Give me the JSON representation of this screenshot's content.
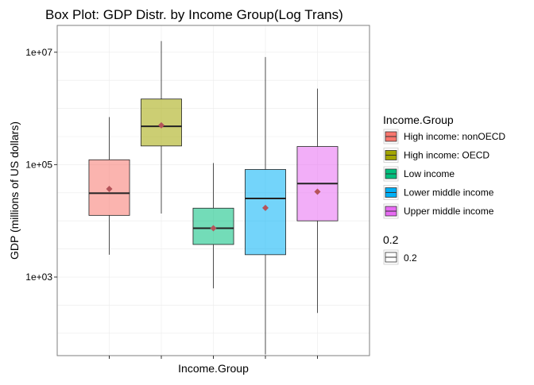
{
  "chart_data": {
    "type": "box",
    "title": "Box Plot: GDP Distr. by Income Group(Log Trans)",
    "xlabel": "Income.Group",
    "ylabel": "GDP (millions of US dollars)",
    "y_scale": "log10",
    "ylim": [
      40,
      30000000
    ],
    "y_ticks": [
      {
        "value": 1000,
        "label": "1e+03"
      },
      {
        "value": 100000,
        "label": "1e+05"
      },
      {
        "value": 10000000,
        "label": "1e+07"
      }
    ],
    "grid": true,
    "legend_position": "right",
    "legend_title": "Income.Group",
    "legend2_title": "0.2",
    "legend2_label": "0.2",
    "mean_marker_color": "#B5545A",
    "groups": [
      {
        "name": "High income: nonOECD",
        "color": "#F8766D",
        "whisker_low": 2500,
        "q1": 12500,
        "median": 31000,
        "q3": 122000,
        "whisker_high": 700000,
        "mean": 37000
      },
      {
        "name": "High income: OECD",
        "color": "#A3A500",
        "whisker_low": 13500,
        "q1": 215000,
        "median": 480000,
        "q3": 1470000,
        "whisker_high": 15800000,
        "mean": 500000
      },
      {
        "name": "Low income",
        "color": "#00BF7D",
        "whisker_low": 630,
        "q1": 3800,
        "median": 7400,
        "q3": 16800,
        "whisker_high": 107000,
        "mean": 7400
      },
      {
        "name": "Lower middle income",
        "color": "#00B0F6",
        "whisker_low": 42,
        "q1": 2500,
        "median": 25000,
        "q3": 82000,
        "whisker_high": 8200000,
        "mean": 17000
      },
      {
        "name": "Upper middle income",
        "color": "#E76BF3",
        "whisker_low": 230,
        "q1": 10000,
        "median": 46000,
        "q3": 210000,
        "whisker_high": 2250000,
        "mean": 33000
      }
    ]
  }
}
